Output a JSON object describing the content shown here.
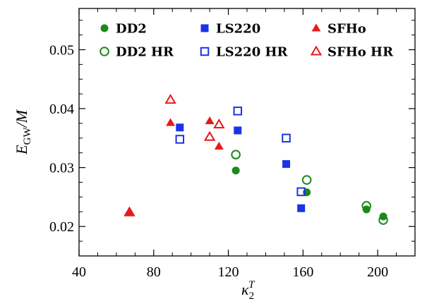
{
  "chart_data": {
    "type": "scatter",
    "xlabel": "κ₂ᵀ",
    "ylabel": "E_GW/M",
    "xlim": [
      40,
      220
    ],
    "ylim": [
      0.015,
      0.057
    ],
    "xticks": [
      40,
      80,
      120,
      160,
      200
    ],
    "yticks": [
      0.02,
      0.03,
      0.04,
      0.05
    ],
    "ytick_labels": [
      "0.02",
      "0.03",
      "0.04",
      "0.05"
    ],
    "xtick_labels": [
      "40",
      "80",
      "120",
      "160",
      "200"
    ],
    "legend_position": "top",
    "series": [
      {
        "name": "DD2",
        "marker": "circle",
        "filled": true,
        "color": "#1a8a1a",
        "points": [
          [
            124,
            0.0295
          ],
          [
            162,
            0.0258
          ],
          [
            194,
            0.0229
          ],
          [
            203,
            0.0217
          ]
        ]
      },
      {
        "name": "LS220",
        "marker": "square",
        "filled": true,
        "color": "#1a33e6",
        "points": [
          [
            94,
            0.0368
          ],
          [
            125,
            0.0363
          ],
          [
            151,
            0.0306
          ],
          [
            159,
            0.0231
          ]
        ]
      },
      {
        "name": "SFHo",
        "marker": "triangle",
        "filled": true,
        "color": "#e61a1a",
        "points": [
          [
            67,
            0.0224
          ],
          [
            89,
            0.0376
          ],
          [
            110,
            0.0379
          ],
          [
            115,
            0.0336
          ]
        ]
      },
      {
        "name": "DD2 HR",
        "marker": "circle",
        "filled": false,
        "color": "#1a8a1a",
        "points": [
          [
            124,
            0.0322
          ],
          [
            162,
            0.0279
          ],
          [
            194,
            0.0235
          ],
          [
            203,
            0.0211
          ]
        ]
      },
      {
        "name": "LS220 HR",
        "marker": "square",
        "filled": false,
        "color": "#1a33e6",
        "points": [
          [
            94,
            0.0348
          ],
          [
            125,
            0.0396
          ],
          [
            151,
            0.035
          ],
          [
            159,
            0.0259
          ]
        ]
      },
      {
        "name": "SFHo HR",
        "marker": "triangle",
        "filled": false,
        "color": "#e61a1a",
        "points": [
          [
            67,
            0.0224
          ],
          [
            89,
            0.0415
          ],
          [
            110,
            0.0352
          ],
          [
            115,
            0.0373
          ]
        ]
      }
    ]
  }
}
